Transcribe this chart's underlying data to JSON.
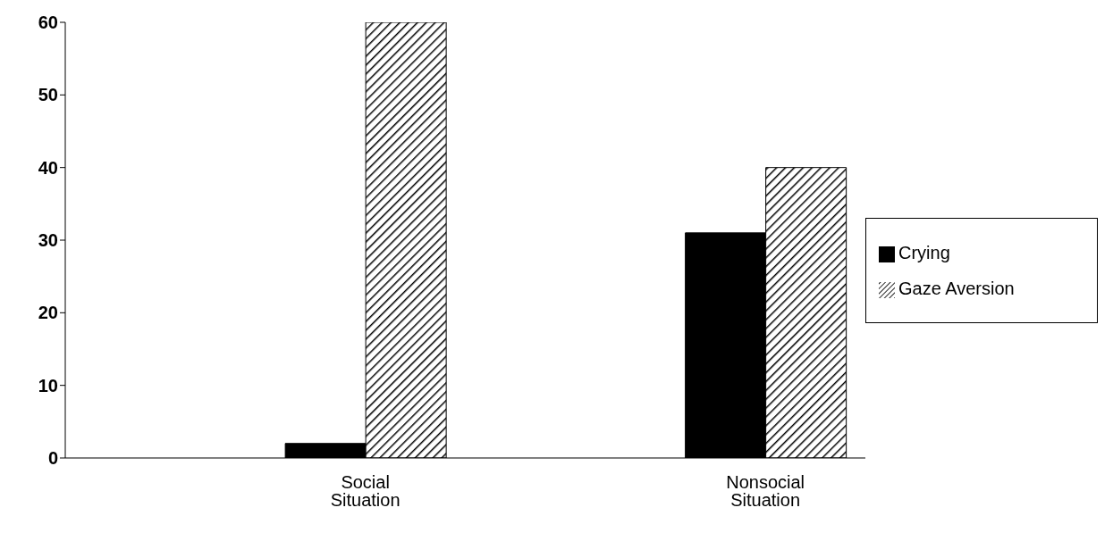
{
  "chart_data": {
    "type": "bar",
    "categories": [
      null,
      "Social Situation",
      null,
      "Nonsocial Situation"
    ],
    "series": [
      {
        "name": "Crying",
        "color": "#000000",
        "values": [
          null,
          2,
          null,
          31
        ]
      },
      {
        "name": "Gaze Aversion",
        "color": "#000000",
        "values": [
          null,
          60,
          null,
          40
        ]
      }
    ],
    "ylim": [
      0,
      60
    ],
    "yticks": [
      0,
      10,
      20,
      30,
      40,
      50,
      60
    ],
    "grid": false,
    "legend": "right"
  }
}
